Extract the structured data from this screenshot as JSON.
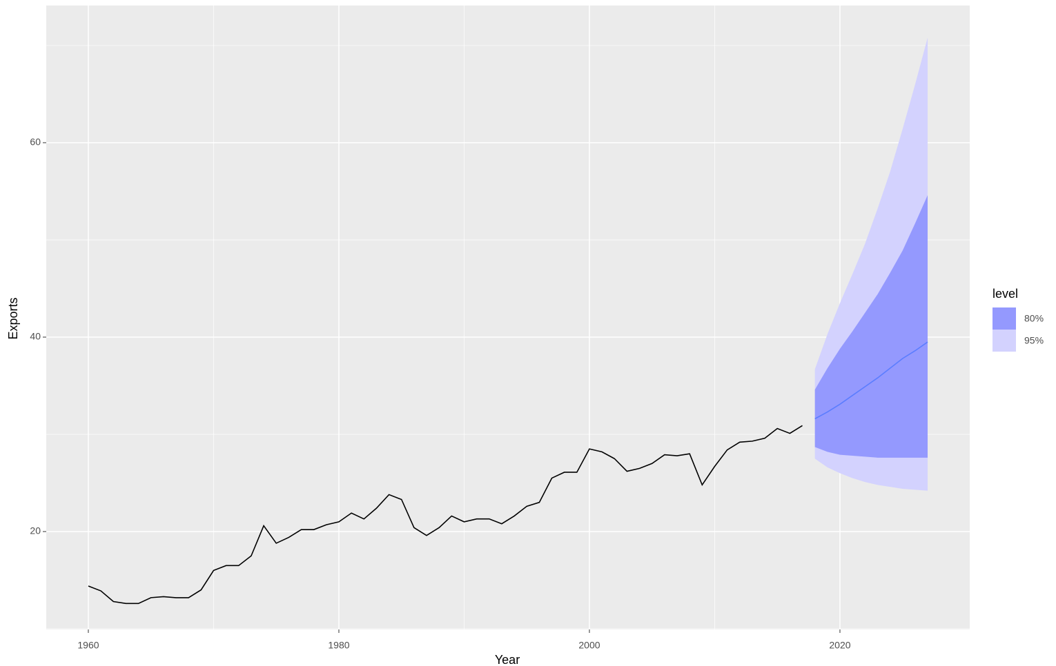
{
  "chart_data": {
    "type": "forecast",
    "x_label": "Year",
    "y_label": "Exports",
    "x": [
      1960,
      1961,
      1962,
      1963,
      1964,
      1965,
      1966,
      1967,
      1968,
      1969,
      1970,
      1971,
      1972,
      1973,
      1974,
      1975,
      1976,
      1977,
      1978,
      1979,
      1980,
      1981,
      1982,
      1983,
      1984,
      1985,
      1986,
      1987,
      1988,
      1989,
      1990,
      1991,
      1992,
      1993,
      1994,
      1995,
      1996,
      1997,
      1998,
      1999,
      2000,
      2001,
      2002,
      2003,
      2004,
      2005,
      2006,
      2007,
      2008,
      2009,
      2010,
      2011,
      2012,
      2013,
      2014,
      2015,
      2016,
      2017
    ],
    "values": [
      14.4,
      13.9,
      12.8,
      12.6,
      12.6,
      13.2,
      13.3,
      13.2,
      13.2,
      14.0,
      16.0,
      16.5,
      16.5,
      17.5,
      20.6,
      18.8,
      19.4,
      20.2,
      20.2,
      20.7,
      21.0,
      21.9,
      21.3,
      22.4,
      23.8,
      23.3,
      20.4,
      19.6,
      20.4,
      21.6,
      21.0,
      21.3,
      21.3,
      20.8,
      21.6,
      22.6,
      23.0,
      25.5,
      26.1,
      26.1,
      28.5,
      28.2,
      27.5,
      26.2,
      26.5,
      27.0,
      27.9,
      27.8,
      28.0,
      24.8,
      26.7,
      28.4,
      29.2,
      29.3,
      29.6,
      30.6,
      30.1,
      30.9
    ],
    "color": "#000000",
    "forecast": {
      "x": [
        2018,
        2019,
        2020,
        2021,
        2022,
        2023,
        2024,
        2025,
        2026,
        2027
      ],
      "mean": [
        31.6,
        32.3,
        33.1,
        34.0,
        34.9,
        35.8,
        36.8,
        37.8,
        38.6,
        39.5
      ],
      "color": "#5b7dff"
    },
    "legend_title": "level",
    "intervals": [
      {
        "name": "80%",
        "color": "#9499fe",
        "lower": [
          28.7,
          28.2,
          27.9,
          27.8,
          27.7,
          27.6,
          27.6,
          27.6,
          27.6,
          27.6
        ],
        "upper": [
          34.6,
          36.8,
          38.8,
          40.6,
          42.5,
          44.4,
          46.6,
          48.9,
          51.7,
          54.6
        ]
      },
      {
        "name": "95%",
        "color": "#d3d2fe",
        "lower": [
          27.5,
          26.6,
          26.0,
          25.5,
          25.1,
          24.8,
          24.6,
          24.4,
          24.3,
          24.2
        ],
        "upper": [
          36.7,
          40.3,
          43.5,
          46.5,
          49.6,
          53.2,
          57.0,
          61.4,
          66.0,
          70.8
        ]
      }
    ],
    "xlim": [
      1956.64,
      2030.36
    ],
    "ylim": [
      9.93,
      74.11
    ],
    "xticks": [
      1960,
      1980,
      2000,
      2020
    ],
    "yticks": [
      20,
      40,
      60
    ],
    "x_minor_grid": [
      1970,
      1990,
      2010
    ],
    "y_minor_grid": [
      10,
      30,
      50,
      70
    ],
    "grid": true
  }
}
